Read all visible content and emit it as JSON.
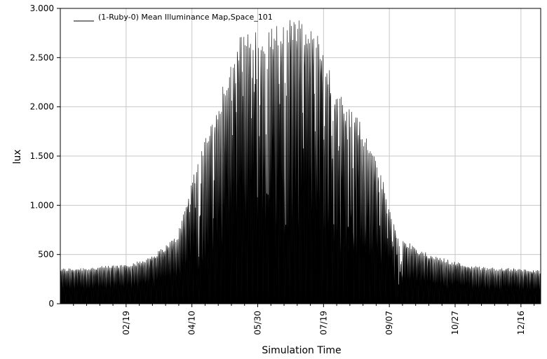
{
  "chart_data": {
    "type": "area",
    "title": "",
    "xlabel": "Simulation Time",
    "ylabel": "lux",
    "xlim": [
      "01/01",
      "12/31"
    ],
    "ylim": [
      0,
      3000
    ],
    "grid": true,
    "legend": {
      "placement": "top-left",
      "entries": [
        "(1-Ruby-0) Mean Illuminance Map,Space_101"
      ]
    },
    "y_ticks": [
      {
        "value": 0,
        "label": "0"
      },
      {
        "value": 500,
        "label": "500"
      },
      {
        "value": 1000,
        "label": "1.000"
      },
      {
        "value": 1500,
        "label": "1.500"
      },
      {
        "value": 2000,
        "label": "2.000"
      },
      {
        "value": 2500,
        "label": "2.500"
      },
      {
        "value": 3000,
        "label": "3.000"
      }
    ],
    "x_ticks": [
      {
        "day": 50,
        "label": "02/19"
      },
      {
        "day": 100,
        "label": "04/10"
      },
      {
        "day": 150,
        "label": "05/30"
      },
      {
        "day": 200,
        "label": "07/19"
      },
      {
        "day": 250,
        "label": "09/07"
      },
      {
        "day": 300,
        "label": "10/27"
      },
      {
        "day": 350,
        "label": "12/16"
      }
    ],
    "series": [
      {
        "name": "(1-Ruby-0) Mean Illuminance Map,Space_101",
        "color": "#000000",
        "x": [
          "01/01",
          "01/15",
          "01/31",
          "02/14",
          "03/01",
          "03/15",
          "03/31",
          "04/15",
          "04/30",
          "05/15",
          "05/31",
          "06/15",
          "06/30",
          "07/15",
          "07/31",
          "08/15",
          "08/31",
          "09/15",
          "09/30",
          "10/15",
          "10/31",
          "11/15",
          "11/30",
          "12/15",
          "12/31"
        ],
        "y": [
          360,
          370,
          380,
          400,
          430,
          520,
          700,
          1450,
          2000,
          2700,
          2800,
          2850,
          2900,
          2750,
          2150,
          1900,
          1400,
          700,
          550,
          480,
          420,
          380,
          370,
          360,
          340
        ]
      }
    ]
  }
}
